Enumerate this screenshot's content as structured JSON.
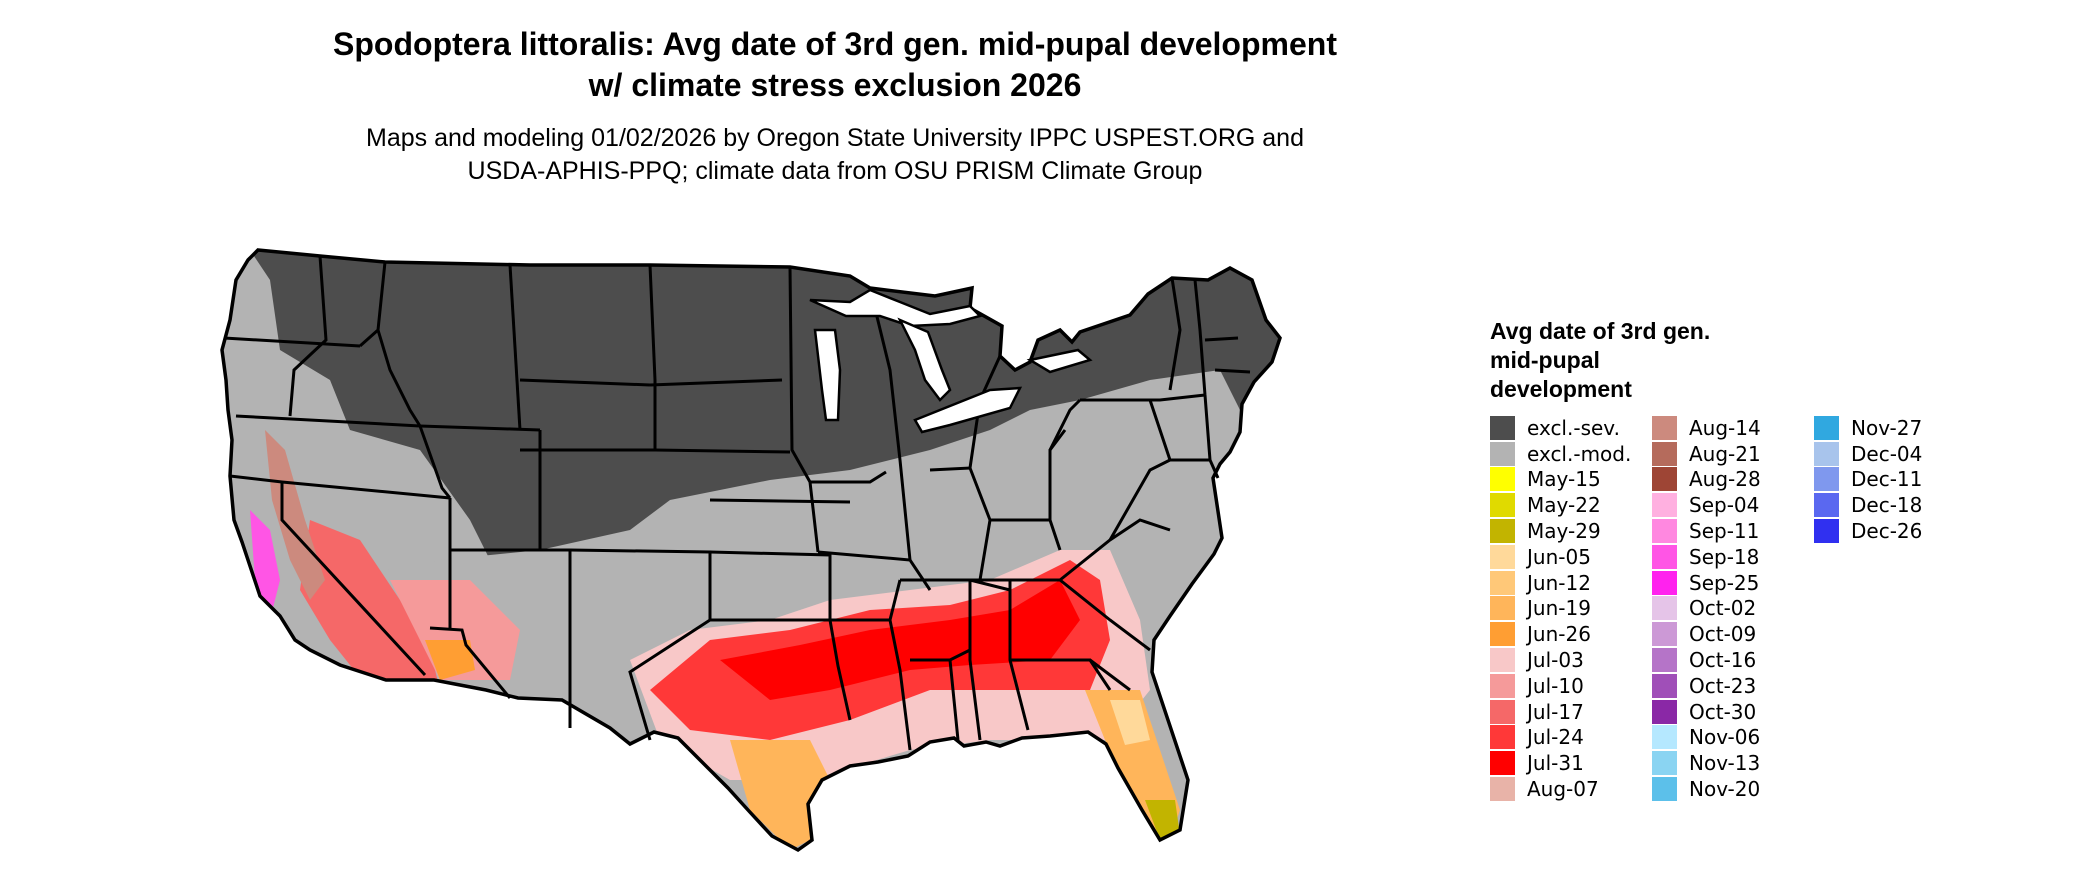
{
  "map": {
    "title_line1": "Spodoptera littoralis: Avg date of 3rd gen. mid-pupal development",
    "title_line2": "w/ climate stress exclusion 2026",
    "subtitle_line1": "Maps and modeling 01/02/2026 by Oregon State University IPPC USPEST.ORG and",
    "subtitle_line2": "USDA-APHIS-PPQ; climate data from OSU PRISM Climate Group"
  },
  "legend": {
    "title": "Avg date of 3rd gen. mid-pupal development",
    "items": [
      {
        "label": "excl.-sev.",
        "color": "#4d4d4d"
      },
      {
        "label": "excl.-mod.",
        "color": "#b3b3b3"
      },
      {
        "label": "May-15",
        "color": "#ffff00"
      },
      {
        "label": "May-22",
        "color": "#e0da00"
      },
      {
        "label": "May-29",
        "color": "#c2b400"
      },
      {
        "label": "Jun-05",
        "color": "#ffd99a"
      },
      {
        "label": "Jun-12",
        "color": "#ffc878"
      },
      {
        "label": "Jun-19",
        "color": "#ffb55a"
      },
      {
        "label": "Jun-26",
        "color": "#ff9e33"
      },
      {
        "label": "Jul-03",
        "color": "#f8c8c8"
      },
      {
        "label": "Jul-10",
        "color": "#f59a9a"
      },
      {
        "label": "Jul-17",
        "color": "#f56868"
      },
      {
        "label": "Jul-24",
        "color": "#ff3838"
      },
      {
        "label": "Jul-31",
        "color": "#ff0000"
      },
      {
        "label": "Aug-07",
        "color": "#e8b3a8"
      },
      {
        "label": "Aug-14",
        "color": "#cc8a7e"
      },
      {
        "label": "Aug-21",
        "color": "#b56b5c"
      },
      {
        "label": "Aug-28",
        "color": "#9e4535"
      },
      {
        "label": "Sep-04",
        "color": "#ffb0e0"
      },
      {
        "label": "Sep-11",
        "color": "#ff88e0"
      },
      {
        "label": "Sep-18",
        "color": "#ff55e5"
      },
      {
        "label": "Sep-25",
        "color": "#ff22ee"
      },
      {
        "label": "Oct-02",
        "color": "#e5c4e8"
      },
      {
        "label": "Oct-09",
        "color": "#cc99d6"
      },
      {
        "label": "Oct-16",
        "color": "#b574c8"
      },
      {
        "label": "Oct-23",
        "color": "#a04fb8"
      },
      {
        "label": "Oct-30",
        "color": "#8a28a6"
      },
      {
        "label": "Nov-06",
        "color": "#b5e8ff"
      },
      {
        "label": "Nov-13",
        "color": "#8ad4f2"
      },
      {
        "label": "Nov-20",
        "color": "#5cc0ea"
      },
      {
        "label": "Nov-27",
        "color": "#30a8e0"
      },
      {
        "label": "Dec-04",
        "color": "#a8c4ec"
      },
      {
        "label": "Dec-11",
        "color": "#7f98ee"
      },
      {
        "label": "Dec-18",
        "color": "#5a68f0"
      },
      {
        "label": "Dec-26",
        "color": "#3030f0"
      }
    ]
  }
}
